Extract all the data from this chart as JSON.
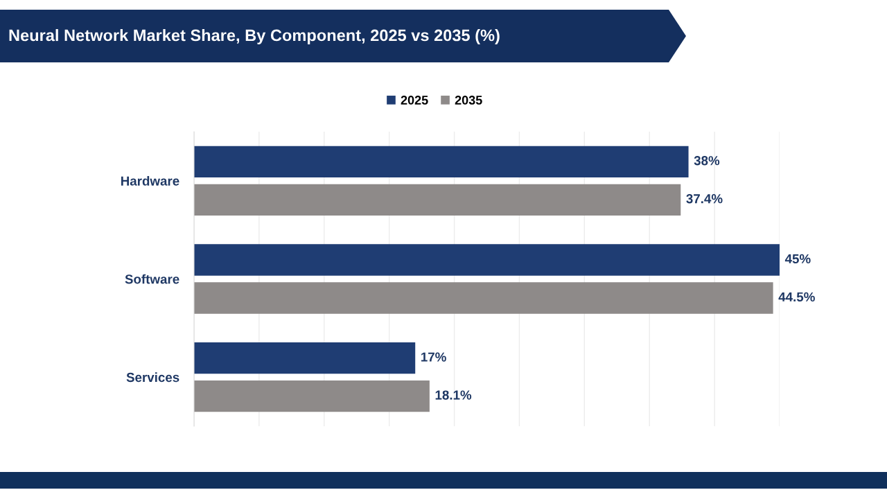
{
  "chart_data": {
    "type": "bar",
    "orientation": "horizontal",
    "title": "Neural Network Market Share, By Component, 2025 vs 2035 (%)",
    "categories": [
      "Hardware",
      "Software",
      "Services"
    ],
    "series": [
      {
        "name": "2025",
        "color": "#1f3d73",
        "values": [
          38,
          45,
          17
        ],
        "value_labels": [
          "38%",
          "45%",
          "17%"
        ]
      },
      {
        "name": "2035",
        "color": "#8e8a89",
        "values": [
          37.4,
          44.5,
          18.1
        ],
        "value_labels": [
          "37.4%",
          "44.5%",
          "18.1%"
        ]
      }
    ],
    "xlim": [
      0,
      45
    ],
    "xticks": [
      {
        "value": 0,
        "label": null
      },
      {
        "value": 5,
        "label": null
      },
      {
        "value": 10,
        "label": null
      },
      {
        "value": 15,
        "label": null
      },
      {
        "value": 20,
        "label": null
      },
      {
        "value": 25,
        "label": null
      },
      {
        "value": 30,
        "label": null
      },
      {
        "value": 35,
        "label": null
      },
      {
        "value": 40,
        "label": null
      },
      {
        "value": 45,
        "label": null
      }
    ],
    "grid": "x",
    "legend": "top",
    "tick_labels": "y"
  }
}
